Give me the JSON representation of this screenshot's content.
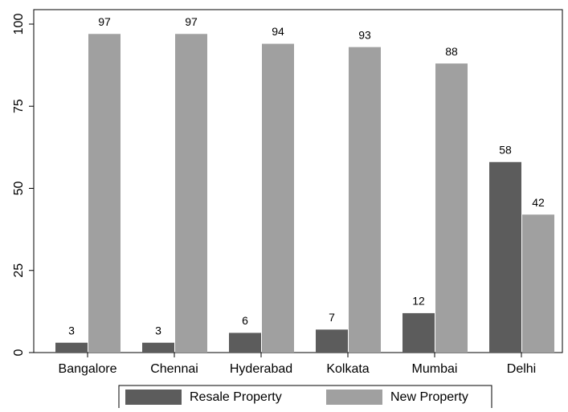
{
  "chart_data": {
    "type": "bar",
    "categories": [
      "Bangalore",
      "Chennai",
      "Hyderabad",
      "Kolkata",
      "Mumbai",
      "Delhi"
    ],
    "series": [
      {
        "name": "Resale Property",
        "color": "#5c5c5c",
        "values": [
          3,
          3,
          6,
          7,
          12,
          58
        ]
      },
      {
        "name": "New Property",
        "color": "#a0a0a0",
        "values": [
          97,
          97,
          94,
          93,
          88,
          42
        ]
      }
    ],
    "ylim": [
      0,
      104.4
    ],
    "yticks": [
      0,
      25,
      50,
      75,
      100
    ],
    "grid": false,
    "legend": "bottom"
  }
}
